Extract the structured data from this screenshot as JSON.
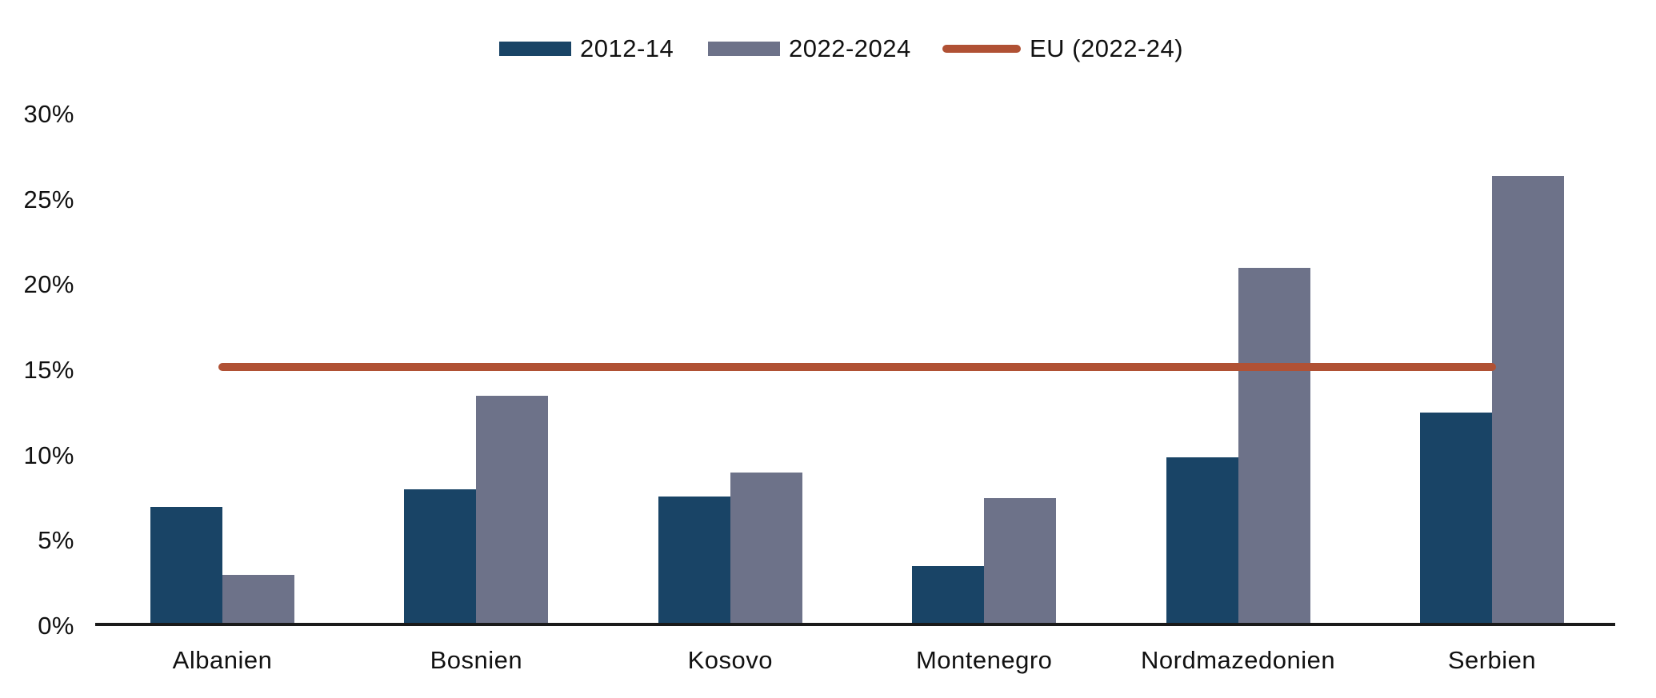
{
  "chart_data": {
    "type": "bar",
    "title": "",
    "xlabel": "",
    "ylabel": "",
    "categories": [
      "Albanien",
      "Bosnien",
      "Kosovo",
      "Montenegro",
      "Nordmazedonien",
      "Serbien"
    ],
    "series": [
      {
        "name": "2012-14",
        "color": "#194466",
        "values": [
          7.0,
          8.0,
          7.6,
          3.5,
          9.9,
          12.5
        ]
      },
      {
        "name": "2022-2024",
        "color": "#6d7289",
        "values": [
          3.0,
          13.5,
          9.0,
          7.5,
          21.0,
          26.4
        ]
      }
    ],
    "reference_line": {
      "name": "EU (2022-24)",
      "color": "#b05134",
      "value": 15.2
    },
    "unit": "%",
    "y_ticks": [
      "0%",
      "5%",
      "10%",
      "15%",
      "20%",
      "25%",
      "30%"
    ],
    "y_tick_values": [
      0,
      5,
      10,
      15,
      20,
      25,
      30
    ],
    "ylim": [
      0,
      32
    ],
    "grid": false,
    "legend_position": "top",
    "axis_color": "#1a1a1a",
    "text_color": "#111111",
    "background_color": "#ffffff"
  }
}
